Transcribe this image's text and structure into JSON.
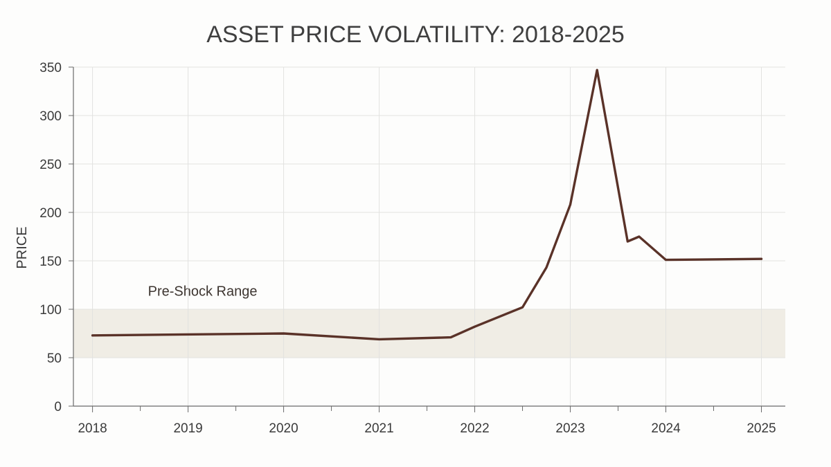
{
  "chart_data": {
    "type": "line",
    "title": "ASSET PRICE VOLATILITY: 2018-2025",
    "xlabel": "",
    "ylabel": "PRICE",
    "xlim": [
      2017.8,
      2025.25
    ],
    "ylim": [
      0,
      350
    ],
    "x_ticks": [
      2018,
      2019,
      2020,
      2021,
      2022,
      2023,
      2024,
      2025
    ],
    "x_tick_labels": [
      "2018",
      "2019",
      "2020",
      "2021",
      "2022",
      "2023",
      "2024",
      "2025"
    ],
    "x_minor_ticks": [
      2018.5,
      2019.5,
      2020.5,
      2021.5,
      2022.5,
      2023.5,
      2024.5
    ],
    "y_ticks": [
      0,
      50,
      100,
      150,
      200,
      250,
      300,
      350
    ],
    "y_tick_labels": [
      "0",
      "50",
      "100",
      "150",
      "200",
      "250",
      "300",
      "350"
    ],
    "grid": true,
    "annotations": [
      {
        "type": "band",
        "label": "Pre-Shock Range",
        "y_range": [
          50,
          100
        ],
        "label_anchor": {
          "x": 2018.58,
          "y": 114
        }
      }
    ],
    "series": [
      {
        "color": "#5a3228",
        "points": [
          {
            "x": 2018.0,
            "y": 73
          },
          {
            "x": 2020.0,
            "y": 75
          },
          {
            "x": 2021.0,
            "y": 69
          },
          {
            "x": 2021.75,
            "y": 71
          },
          {
            "x": 2022.0,
            "y": 82
          },
          {
            "x": 2022.5,
            "y": 102
          },
          {
            "x": 2022.75,
            "y": 143
          },
          {
            "x": 2023.0,
            "y": 208
          },
          {
            "x": 2023.28,
            "y": 347
          },
          {
            "x": 2023.6,
            "y": 170
          },
          {
            "x": 2023.72,
            "y": 175
          },
          {
            "x": 2024.0,
            "y": 151
          },
          {
            "x": 2025.0,
            "y": 152
          }
        ]
      }
    ]
  },
  "colors": {
    "background": "#fdfdfc",
    "band_fill": "#f0ede5",
    "grid": "#e2e2e0",
    "axis": "#6a6a6a",
    "text": "#3a3a3a",
    "line": "#5a3228"
  }
}
